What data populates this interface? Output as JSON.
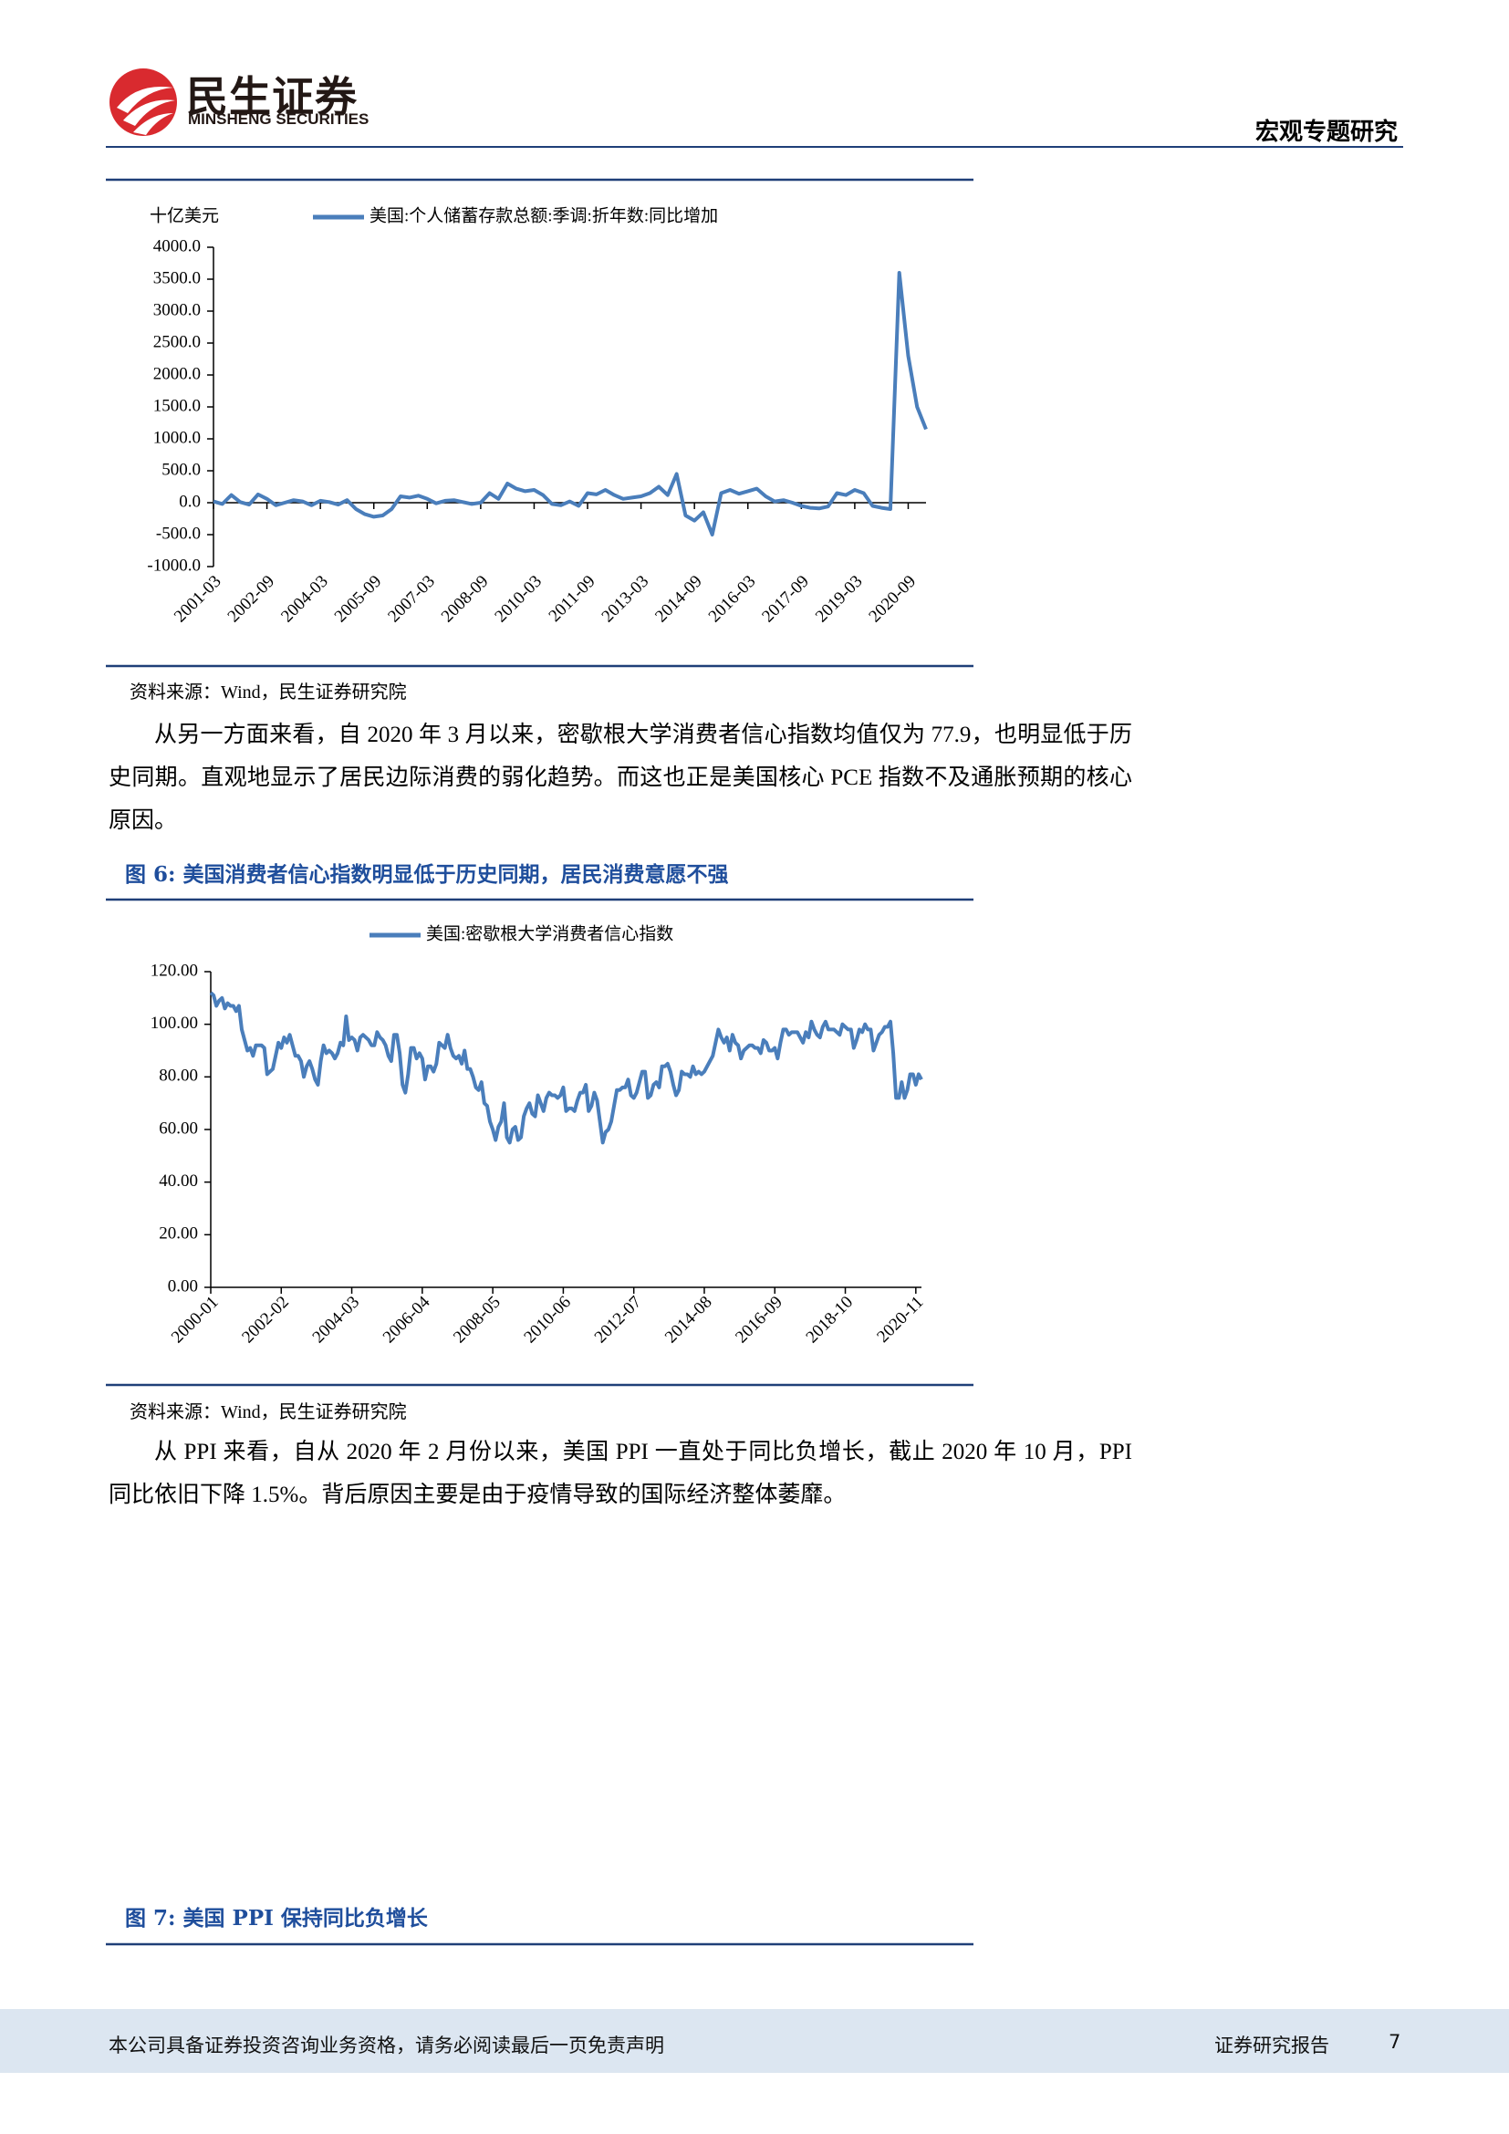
{
  "header": {
    "brand": "民生证券",
    "brand_en": "MINSHENG SECURITIES",
    "section": "宏观专题研究"
  },
  "figure_5": {
    "chart_data": {
      "type": "line",
      "y_unit": "十亿美元",
      "categories": [
        "2001-03",
        null,
        null,
        null,
        null,
        null,
        "2002-09",
        null,
        null,
        null,
        null,
        null,
        "2004-03",
        null,
        null,
        null,
        null,
        null,
        "2005-09",
        null,
        null,
        null,
        null,
        null,
        "2007-03",
        null,
        null,
        null,
        null,
        null,
        "2008-09",
        null,
        null,
        null,
        null,
        null,
        "2010-03",
        null,
        null,
        null,
        null,
        null,
        "2011-09",
        null,
        null,
        null,
        null,
        null,
        "2013-03",
        null,
        null,
        null,
        null,
        null,
        "2014-09",
        null,
        null,
        null,
        null,
        null,
        "2016-03",
        null,
        null,
        null,
        null,
        null,
        "2017-09",
        null,
        null,
        null,
        null,
        null,
        "2019-03",
        null,
        null,
        null,
        null,
        null,
        "2020-09",
        null,
        null
      ],
      "series": [
        {
          "name": "美国:个人储蓄存款总额:季调:折年数:同比增加",
          "color": "#4a7ebb",
          "values": [
            20,
            -20,
            120,
            10,
            -30,
            130,
            60,
            -40,
            0,
            40,
            20,
            -40,
            30,
            10,
            -30,
            40,
            -100,
            -180,
            -220,
            -200,
            -100,
            100,
            80,
            110,
            60,
            -10,
            30,
            40,
            10,
            -20,
            0,
            150,
            60,
            300,
            220,
            180,
            200,
            120,
            -20,
            -40,
            20,
            -50,
            150,
            130,
            200,
            120,
            60,
            80,
            100,
            150,
            250,
            120,
            450,
            -200,
            -280,
            -150,
            -500,
            150,
            200,
            140,
            180,
            220,
            100,
            20,
            40,
            0,
            -50,
            -80,
            -90,
            -60,
            150,
            120,
            200,
            150,
            -50,
            -80,
            -100,
            3600,
            2300,
            1500,
            1150
          ]
        }
      ],
      "ylim": [
        -1000,
        4000
      ],
      "yticks": [
        {
          "value": -1000,
          "label": "-1000.0"
        },
        {
          "value": -500,
          "label": "-500.0"
        },
        {
          "value": 0,
          "label": "0.0"
        },
        {
          "value": 500,
          "label": "500.0"
        },
        {
          "value": 1000,
          "label": "1000.0"
        },
        {
          "value": 1500,
          "label": "1500.0"
        },
        {
          "value": 2000,
          "label": "2000.0"
        },
        {
          "value": 2500,
          "label": "2500.0"
        },
        {
          "value": 3000,
          "label": "3000.0"
        },
        {
          "value": 3500,
          "label": "3500.0"
        },
        {
          "value": 4000,
          "label": "4000.0"
        }
      ],
      "grid": false
    },
    "source": "资料来源：Wind，民生证券研究院"
  },
  "paragraph_1": "从另一方面来看，自 2020 年 3 月以来，密歇根大学消费者信心指数均值仅为 77.9，也明显低于历史同期。直观地显示了居民边际消费的弱化趋势。而这也正是美国核心 PCE 指数不及通胀预期的核心原因。",
  "figure_6": {
    "caption_label": "图 6:",
    "caption": "美国消费者信心指数明显低于历史同期，居民消费意愿不强",
    "chart_data": {
      "type": "line",
      "categories": [
        "2000-01",
        null,
        null,
        null,
        null,
        null,
        null,
        null,
        null,
        null,
        null,
        null,
        null,
        null,
        null,
        null,
        null,
        null,
        null,
        null,
        null,
        null,
        null,
        null,
        null,
        "2002-02",
        null,
        null,
        null,
        null,
        null,
        null,
        null,
        null,
        null,
        null,
        null,
        null,
        null,
        null,
        null,
        null,
        null,
        null,
        null,
        null,
        null,
        null,
        null,
        null,
        "2004-03",
        null,
        null,
        null,
        null,
        null,
        null,
        null,
        null,
        null,
        null,
        null,
        null,
        null,
        null,
        null,
        null,
        null,
        null,
        null,
        null,
        null,
        null,
        null,
        null,
        "2006-04",
        null,
        null,
        null,
        null,
        null,
        null,
        null,
        null,
        null,
        null,
        null,
        null,
        null,
        null,
        null,
        null,
        null,
        null,
        null,
        null,
        null,
        null,
        null,
        null,
        "2008-05",
        null,
        null,
        null,
        null,
        null,
        null,
        null,
        null,
        null,
        null,
        null,
        null,
        null,
        null,
        null,
        null,
        null,
        null,
        null,
        null,
        null,
        null,
        null,
        null,
        "2010-06",
        null,
        null,
        null,
        null,
        null,
        null,
        null,
        null,
        null,
        null,
        null,
        null,
        null,
        null,
        null,
        null,
        null,
        null,
        null,
        null,
        null,
        null,
        null,
        null,
        "2012-07",
        null,
        null,
        null,
        null,
        null,
        null,
        null,
        null,
        null,
        null,
        null,
        null,
        null,
        null,
        null,
        null,
        null,
        null,
        null,
        null,
        null,
        null,
        null,
        null,
        "2014-08",
        null,
        null,
        null,
        null,
        null,
        null,
        null,
        null,
        null,
        null,
        null,
        null,
        null,
        null,
        null,
        null,
        null,
        null,
        null,
        null,
        null,
        null,
        null,
        null,
        "2016-09",
        null,
        null,
        null,
        null,
        null,
        null,
        null,
        null,
        null,
        null,
        null,
        null,
        null,
        null,
        null,
        null,
        null,
        null,
        null,
        null,
        null,
        null,
        null,
        null,
        "2018-10",
        null,
        null,
        null,
        null,
        null,
        null,
        null,
        null,
        null,
        null,
        null,
        null,
        null,
        null,
        null,
        null,
        null,
        null,
        null,
        null,
        null,
        null,
        null,
        null,
        "2020-11",
        null,
        null
      ],
      "series": [
        {
          "name": "美国:密歇根大学消费者信心指数",
          "color": "#4a7ebb",
          "values": [
            112,
            111,
            107,
            109,
            110,
            106,
            108,
            107,
            107,
            105,
            107,
            98,
            94,
            90,
            91,
            88,
            92,
            92,
            92,
            91,
            81,
            82,
            83,
            88,
            93,
            91,
            95,
            93,
            96,
            92,
            88,
            88,
            86,
            80,
            84,
            86,
            83,
            79,
            77,
            86,
            92,
            89,
            90,
            89,
            87,
            89,
            93,
            92,
            103,
            94,
            95,
            94,
            90,
            95,
            96,
            95,
            94,
            92,
            92,
            97,
            95,
            94,
            92,
            88,
            86,
            96,
            96,
            89,
            77,
            74,
            81,
            91,
            91,
            87,
            89,
            87,
            79,
            84,
            84,
            82,
            85,
            93,
            92,
            91,
            96,
            91,
            88,
            87,
            88,
            85,
            90,
            83,
            83,
            80,
            76,
            75,
            78,
            70,
            69,
            63,
            60,
            56,
            61,
            63,
            70,
            57,
            55,
            60,
            61,
            56,
            57,
            65,
            68,
            70,
            66,
            65,
            73,
            70,
            67,
            72,
            74,
            73,
            73,
            72,
            73,
            76,
            67,
            68,
            68,
            67,
            71,
            74,
            74,
            77,
            67,
            69,
            74,
            71,
            63,
            55,
            59,
            60,
            63,
            69,
            75,
            75,
            76,
            76,
            79,
            73,
            72,
            74,
            78,
            82,
            82,
            72,
            73,
            77,
            78,
            76,
            84,
            84,
            85,
            82,
            77,
            73,
            75,
            82,
            81,
            81,
            80,
            84,
            81,
            82,
            81,
            82,
            84,
            86,
            88,
            93,
            98,
            95,
            93,
            95,
            90,
            96,
            93,
            92,
            87,
            90,
            91,
            92,
            92,
            91,
            91,
            89,
            94,
            93,
            90,
            90,
            91,
            87,
            93,
            98,
            98,
            96,
            97,
            97,
            97,
            95,
            93,
            97,
            95,
            101,
            98,
            96,
            95,
            99,
            101,
            98,
            98,
            98,
            97,
            96,
            100,
            99,
            98,
            98,
            91,
            94,
            98,
            97,
            100,
            98,
            98,
            90,
            93,
            96,
            97,
            99,
            99,
            101,
            89,
            72,
            72,
            78,
            72,
            75,
            81,
            81,
            77,
            81,
            79
          ]
        }
      ],
      "ylim": [
        0,
        120
      ],
      "yticks": [
        {
          "value": 0,
          "label": "0.00"
        },
        {
          "value": 20,
          "label": "20.00"
        },
        {
          "value": 40,
          "label": "40.00"
        },
        {
          "value": 60,
          "label": "60.00"
        },
        {
          "value": 80,
          "label": "80.00"
        },
        {
          "value": 100,
          "label": "100.00"
        },
        {
          "value": 120,
          "label": "120.00"
        }
      ],
      "grid": false
    },
    "source": "资料来源：Wind，民生证券研究院"
  },
  "paragraph_2": "从 PPI 来看，自从 2020 年 2 月份以来，美国 PPI 一直处于同比负增长，截止 2020 年 10 月，PPI 同比依旧下降 1.5%。背后原因主要是由于疫情导致的国际经济整体萎靡。",
  "figure_7": {
    "caption_label": "图 7:",
    "caption": "美国 PPI 保持同比负增长"
  },
  "footer": {
    "disclaimer": "本公司具备证券投资咨询业务资格，请务必阅读最后一页免责声明",
    "report_type": "证券研究报告",
    "page": "7"
  }
}
